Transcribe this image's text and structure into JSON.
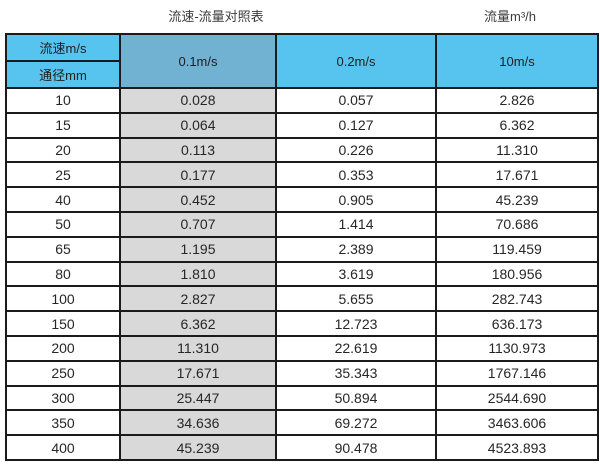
{
  "titles": {
    "main": "流速-流量对照表",
    "unit": "流量m³/h"
  },
  "colors": {
    "header_blue": "#57c4ef",
    "header_dark_blue": "#71b2d3",
    "gray_column": "#d9d9d9",
    "border": "#1b1b1b"
  },
  "chart_data": {
    "type": "table",
    "title": "流速-流量对照表",
    "unit_label": "流量m³/h",
    "corner": {
      "top": "流速m/s",
      "bottom": "通径mm"
    },
    "columns": [
      "0.1m/s",
      "0.2m/s",
      "10m/s"
    ],
    "rows": [
      {
        "diameter_mm": "10",
        "values": [
          "0.028",
          "0.057",
          "2.826"
        ]
      },
      {
        "diameter_mm": "15",
        "values": [
          "0.064",
          "0.127",
          "6.362"
        ]
      },
      {
        "diameter_mm": "20",
        "values": [
          "0.113",
          "0.226",
          "11.310"
        ]
      },
      {
        "diameter_mm": "25",
        "values": [
          "0.177",
          "0.353",
          "17.671"
        ]
      },
      {
        "diameter_mm": "40",
        "values": [
          "0.452",
          "0.905",
          "45.239"
        ]
      },
      {
        "diameter_mm": "50",
        "values": [
          "0.707",
          "1.414",
          "70.686"
        ]
      },
      {
        "diameter_mm": "65",
        "values": [
          "1.195",
          "2.389",
          "119.459"
        ]
      },
      {
        "diameter_mm": "80",
        "values": [
          "1.810",
          "3.619",
          "180.956"
        ]
      },
      {
        "diameter_mm": "100",
        "values": [
          "2.827",
          "5.655",
          "282.743"
        ]
      },
      {
        "diameter_mm": "150",
        "values": [
          "6.362",
          "12.723",
          "636.173"
        ]
      },
      {
        "diameter_mm": "200",
        "values": [
          "11.310",
          "22.619",
          "1130.973"
        ]
      },
      {
        "diameter_mm": "250",
        "values": [
          "17.671",
          "35.343",
          "1767.146"
        ]
      },
      {
        "diameter_mm": "300",
        "values": [
          "25.447",
          "50.894",
          "2544.690"
        ]
      },
      {
        "diameter_mm": "350",
        "values": [
          "34.636",
          "69.272",
          "3463.606"
        ]
      },
      {
        "diameter_mm": "400",
        "values": [
          "45.239",
          "90.478",
          "4523.893"
        ]
      }
    ]
  }
}
